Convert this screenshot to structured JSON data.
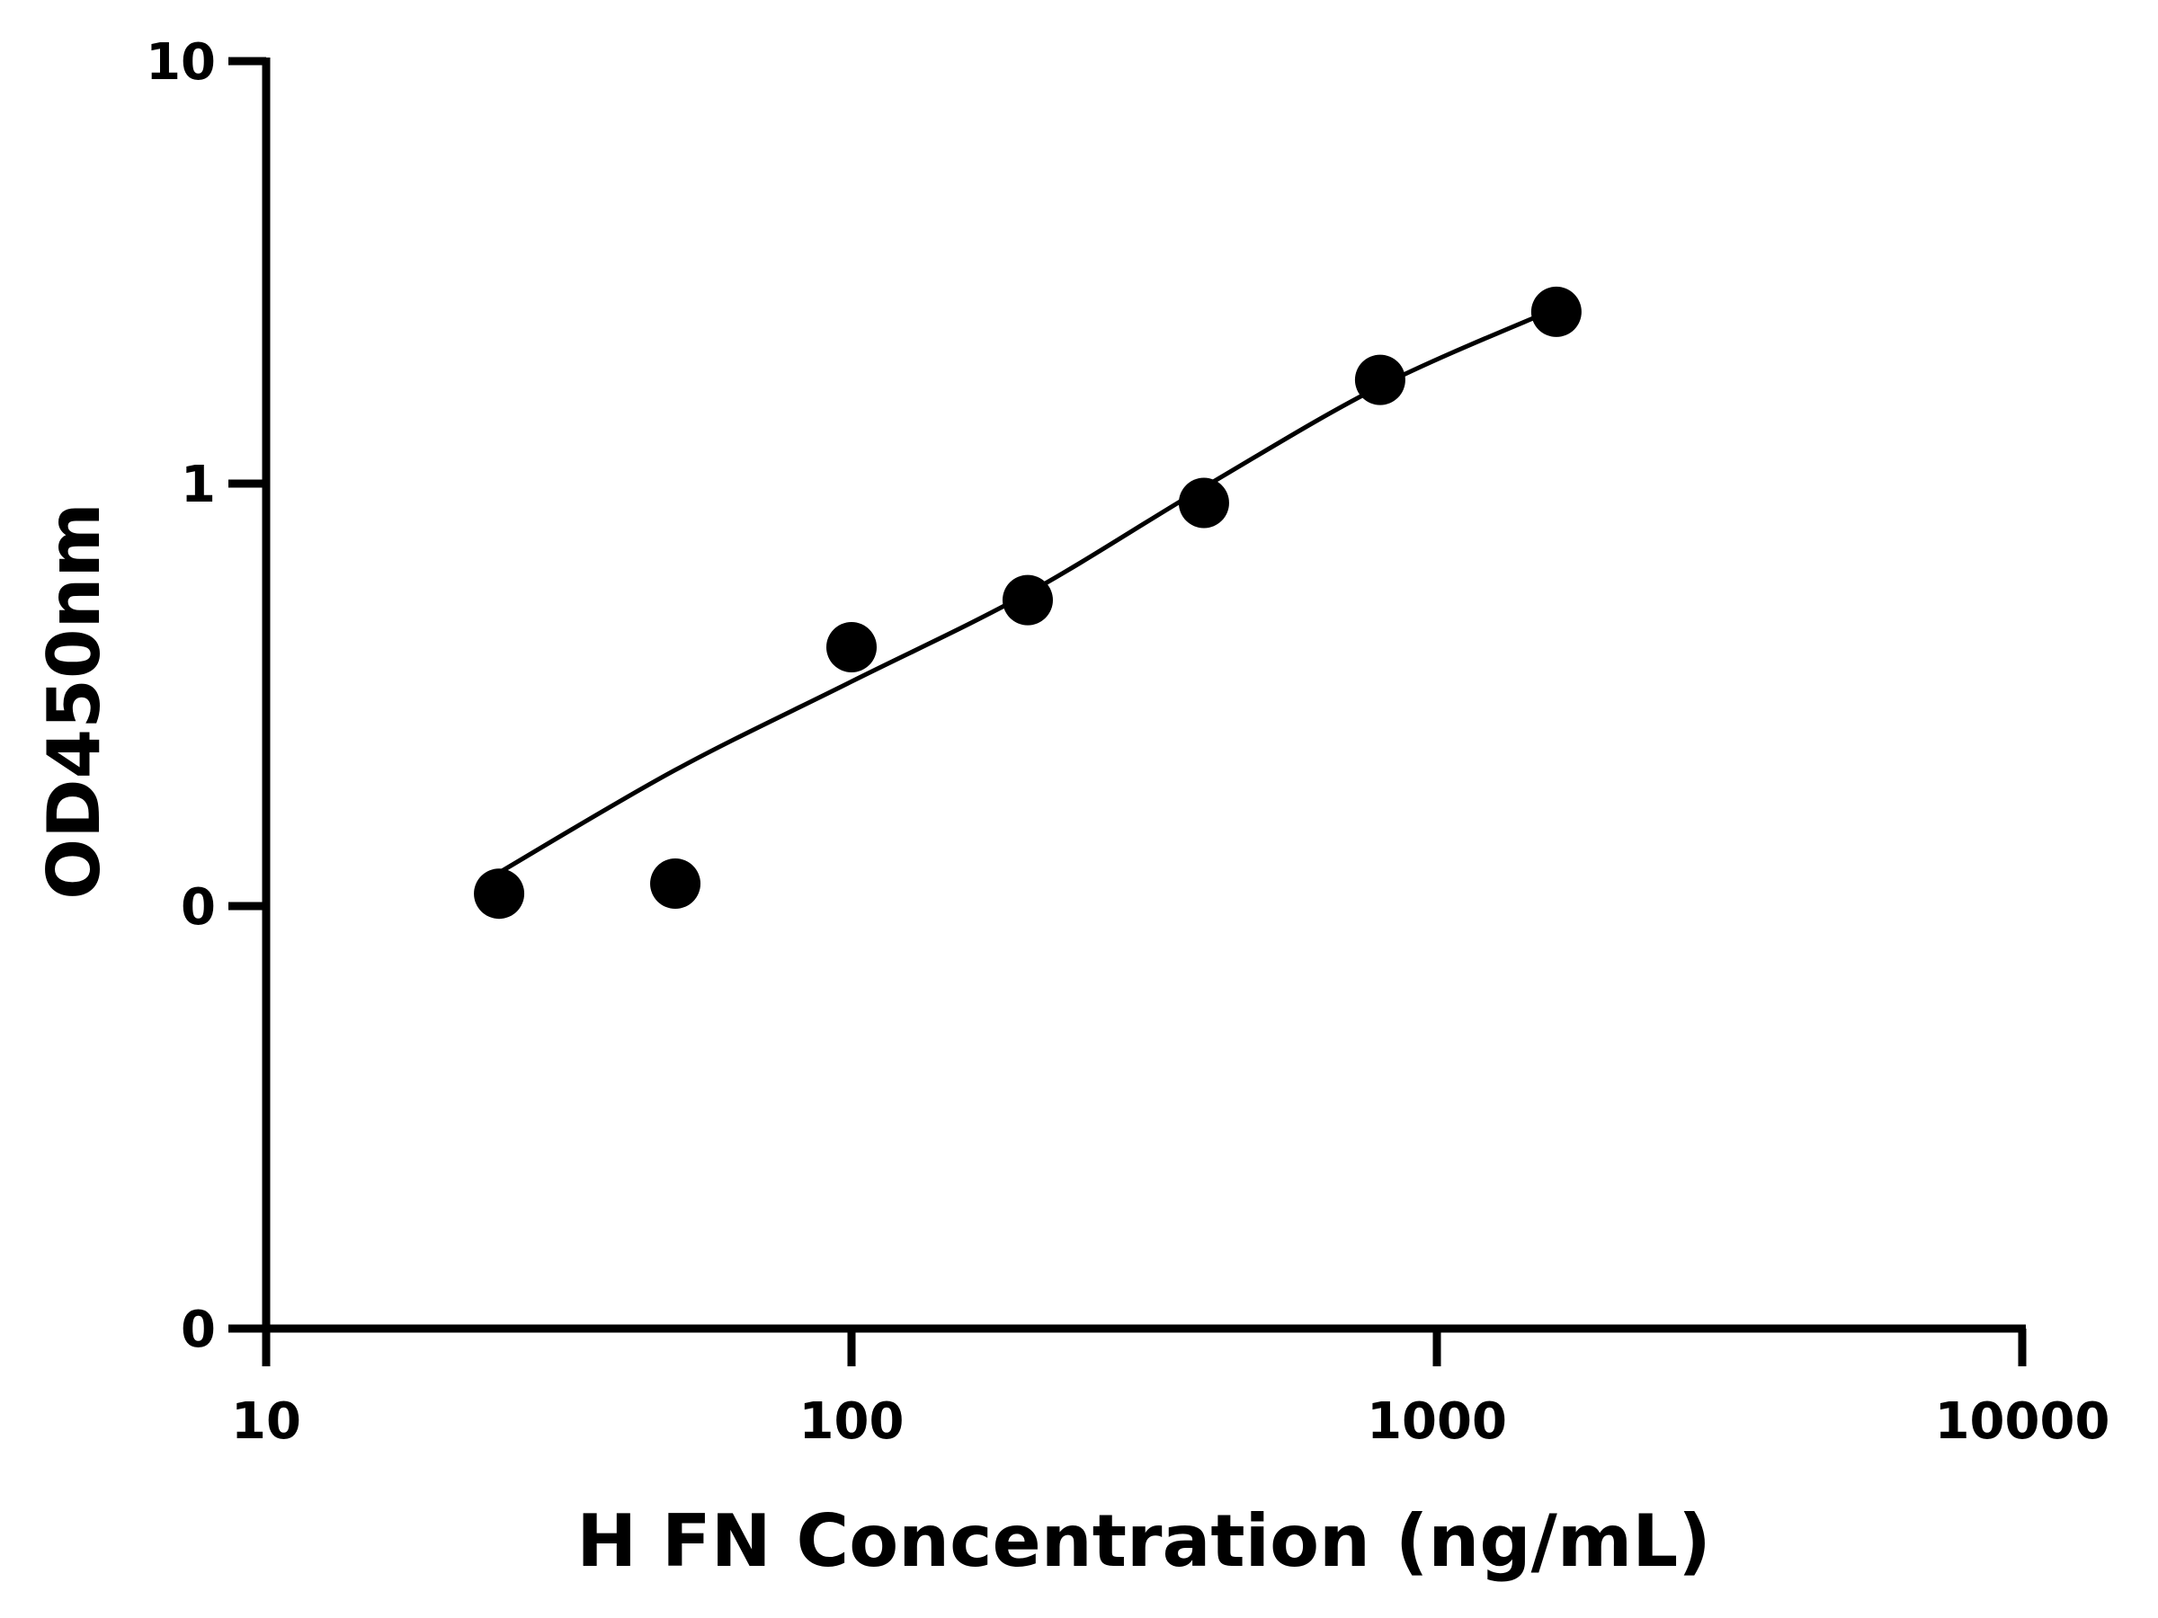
{
  "chart_data": {
    "type": "scatter",
    "title": "",
    "xlabel": "H FN Concentration (ng/mL)",
    "ylabel": "OD450nm",
    "x_scale": "log",
    "x_ticks": [
      {
        "value": 10,
        "label": "10"
      },
      {
        "value": 100,
        "label": "100"
      },
      {
        "value": 1000,
        "label": "1000"
      },
      {
        "value": 10000,
        "label": "10000"
      }
    ],
    "y_ticks": [
      {
        "value": 0.01,
        "label": "0"
      },
      {
        "value": 0.1,
        "label": "0"
      },
      {
        "value": 1,
        "label": "1"
      },
      {
        "value": 10,
        "label": "10"
      }
    ],
    "xlim": [
      10,
      10000
    ],
    "ylim": [
      0.01,
      10
    ],
    "grid": false,
    "points": [
      {
        "x": 25,
        "y": 0.107
      },
      {
        "x": 50,
        "y": 0.113
      },
      {
        "x": 100,
        "y": 0.41
      },
      {
        "x": 200,
        "y": 0.53
      },
      {
        "x": 400,
        "y": 0.9
      },
      {
        "x": 800,
        "y": 1.76
      },
      {
        "x": 1600,
        "y": 2.55
      }
    ],
    "fit_curve": [
      {
        "x": 25,
        "y": 0.12
      },
      {
        "x": 50,
        "y": 0.21
      },
      {
        "x": 100,
        "y": 0.34
      },
      {
        "x": 200,
        "y": 0.55
      },
      {
        "x": 400,
        "y": 0.98
      },
      {
        "x": 800,
        "y": 1.7
      },
      {
        "x": 1600,
        "y": 2.6
      }
    ],
    "colors": {
      "axis": "#000000",
      "points": "#000000",
      "curve": "#000000"
    }
  }
}
